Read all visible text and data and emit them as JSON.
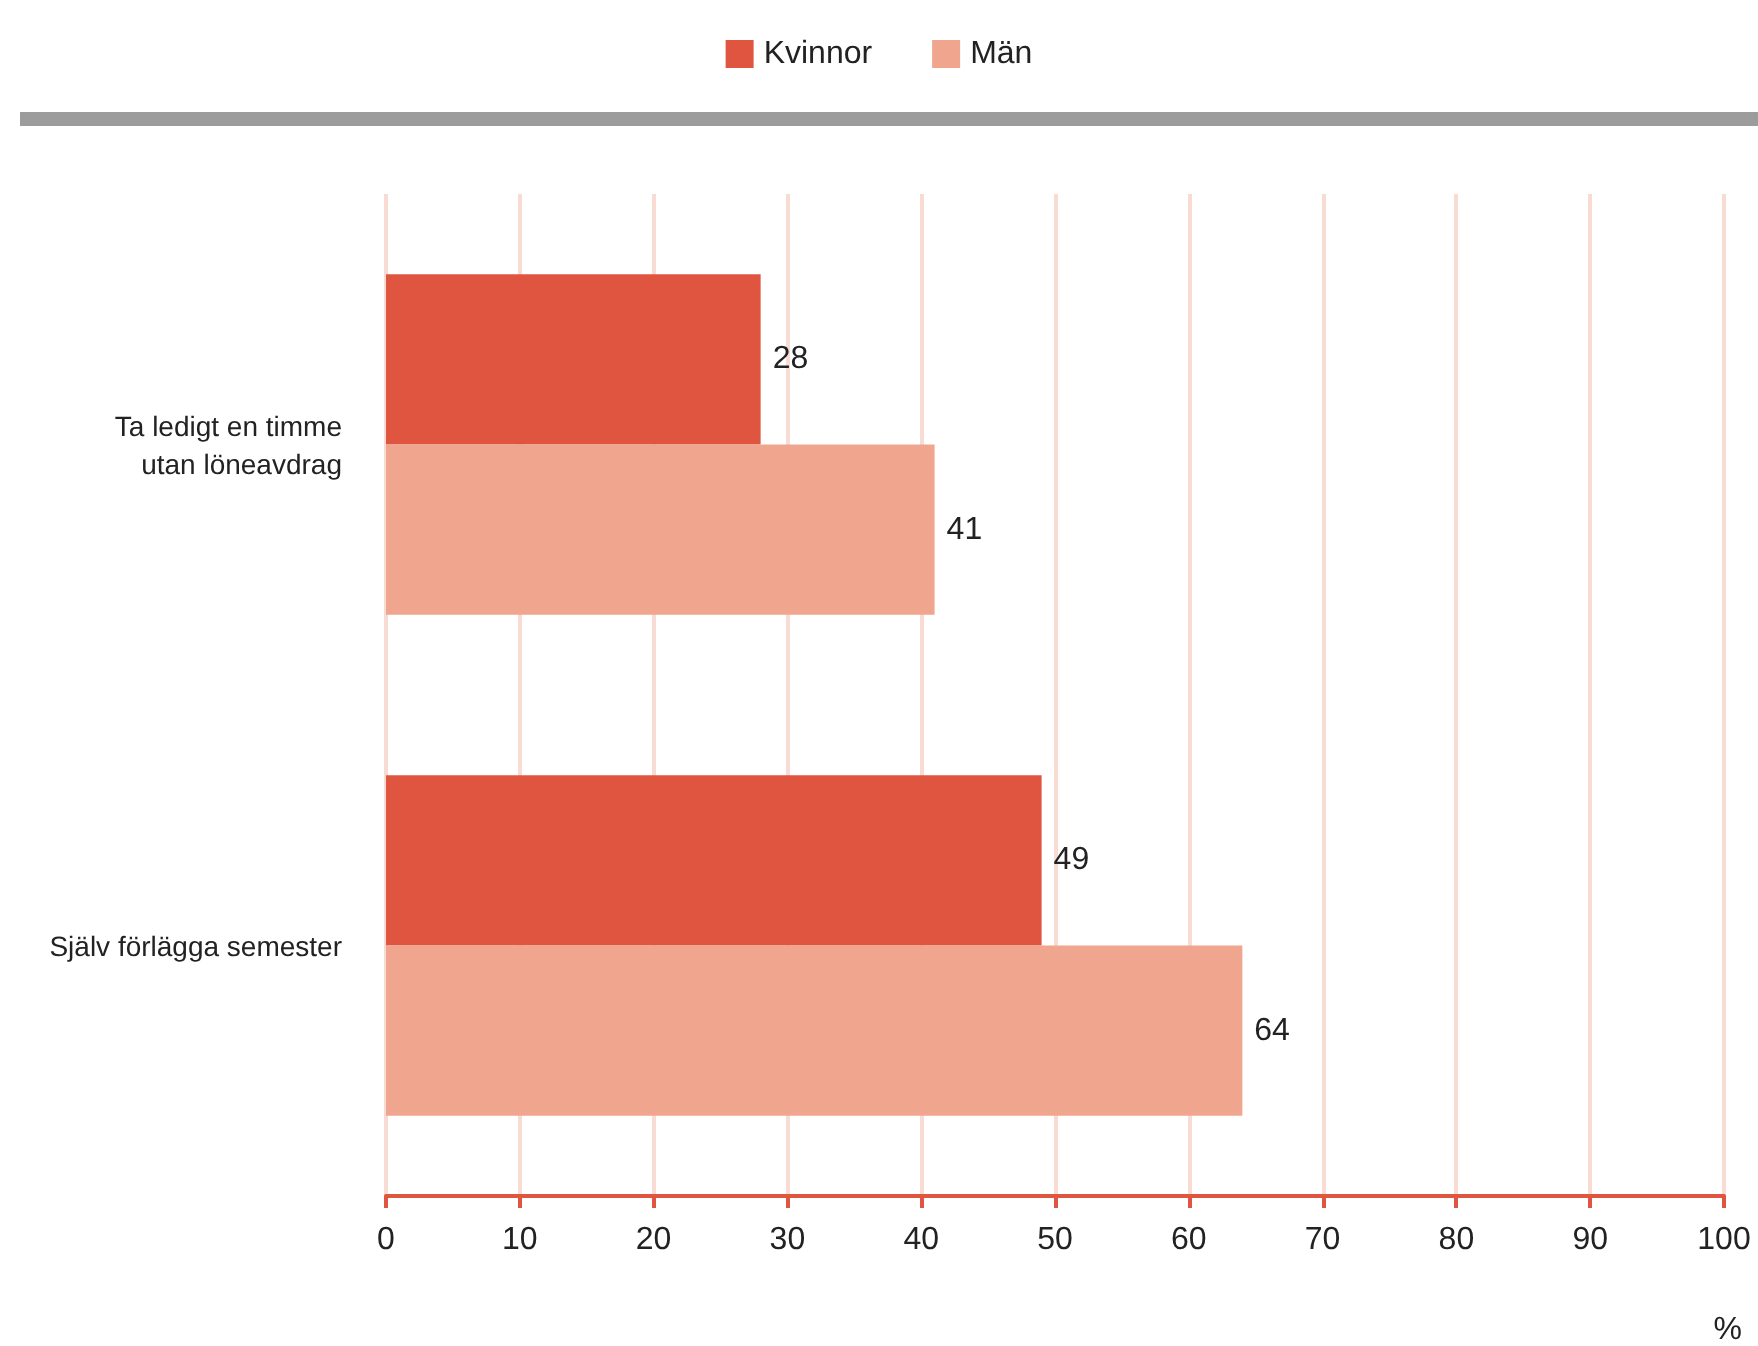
{
  "chart_data": {
    "type": "bar",
    "orientation": "horizontal",
    "xlabel": "%",
    "categories": [
      "Ta ledigt en timme\nutan löneavdrag",
      "Själv förlägga semester"
    ],
    "series": [
      {
        "name": "Kvinnor",
        "color": "#e05540",
        "values": [
          28,
          49
        ]
      },
      {
        "name": "Män",
        "color": "#efa58e",
        "values": [
          41,
          64
        ]
      }
    ],
    "xlim": [
      0,
      100
    ],
    "xticks": [
      0,
      10,
      20,
      30,
      40,
      50,
      60,
      70,
      80,
      90,
      100
    ],
    "grid": "x",
    "legend": "top",
    "data_labels": true
  }
}
